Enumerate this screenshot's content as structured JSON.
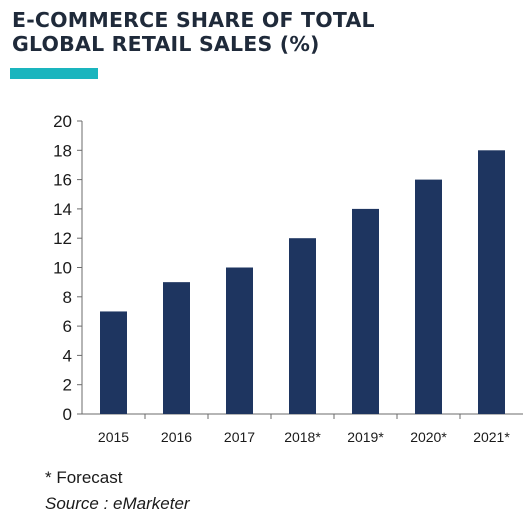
{
  "title_lines": [
    "E-COMMERCE SHARE OF TOTAL",
    "GLOBAL RETAIL SALES (%)"
  ],
  "accent_color": "#1ab5be",
  "bar_color": "#1e3560",
  "footnote": "* Forecast",
  "source": "Source : eMarketer",
  "chart_data": {
    "type": "bar",
    "title": "E-COMMERCE SHARE OF TOTAL GLOBAL RETAIL SALES (%)",
    "categories": [
      "2015",
      "2016",
      "2017",
      "2018*",
      "2019*",
      "2020*",
      "2021*"
    ],
    "values": [
      7,
      9,
      10,
      12,
      14,
      16,
      18
    ],
    "ylim": [
      0,
      20
    ],
    "yticks": [
      0,
      2,
      4,
      6,
      8,
      10,
      12,
      14,
      16,
      18,
      20
    ],
    "xlabel": "",
    "ylabel": "",
    "grid": false,
    "legend": "none"
  }
}
